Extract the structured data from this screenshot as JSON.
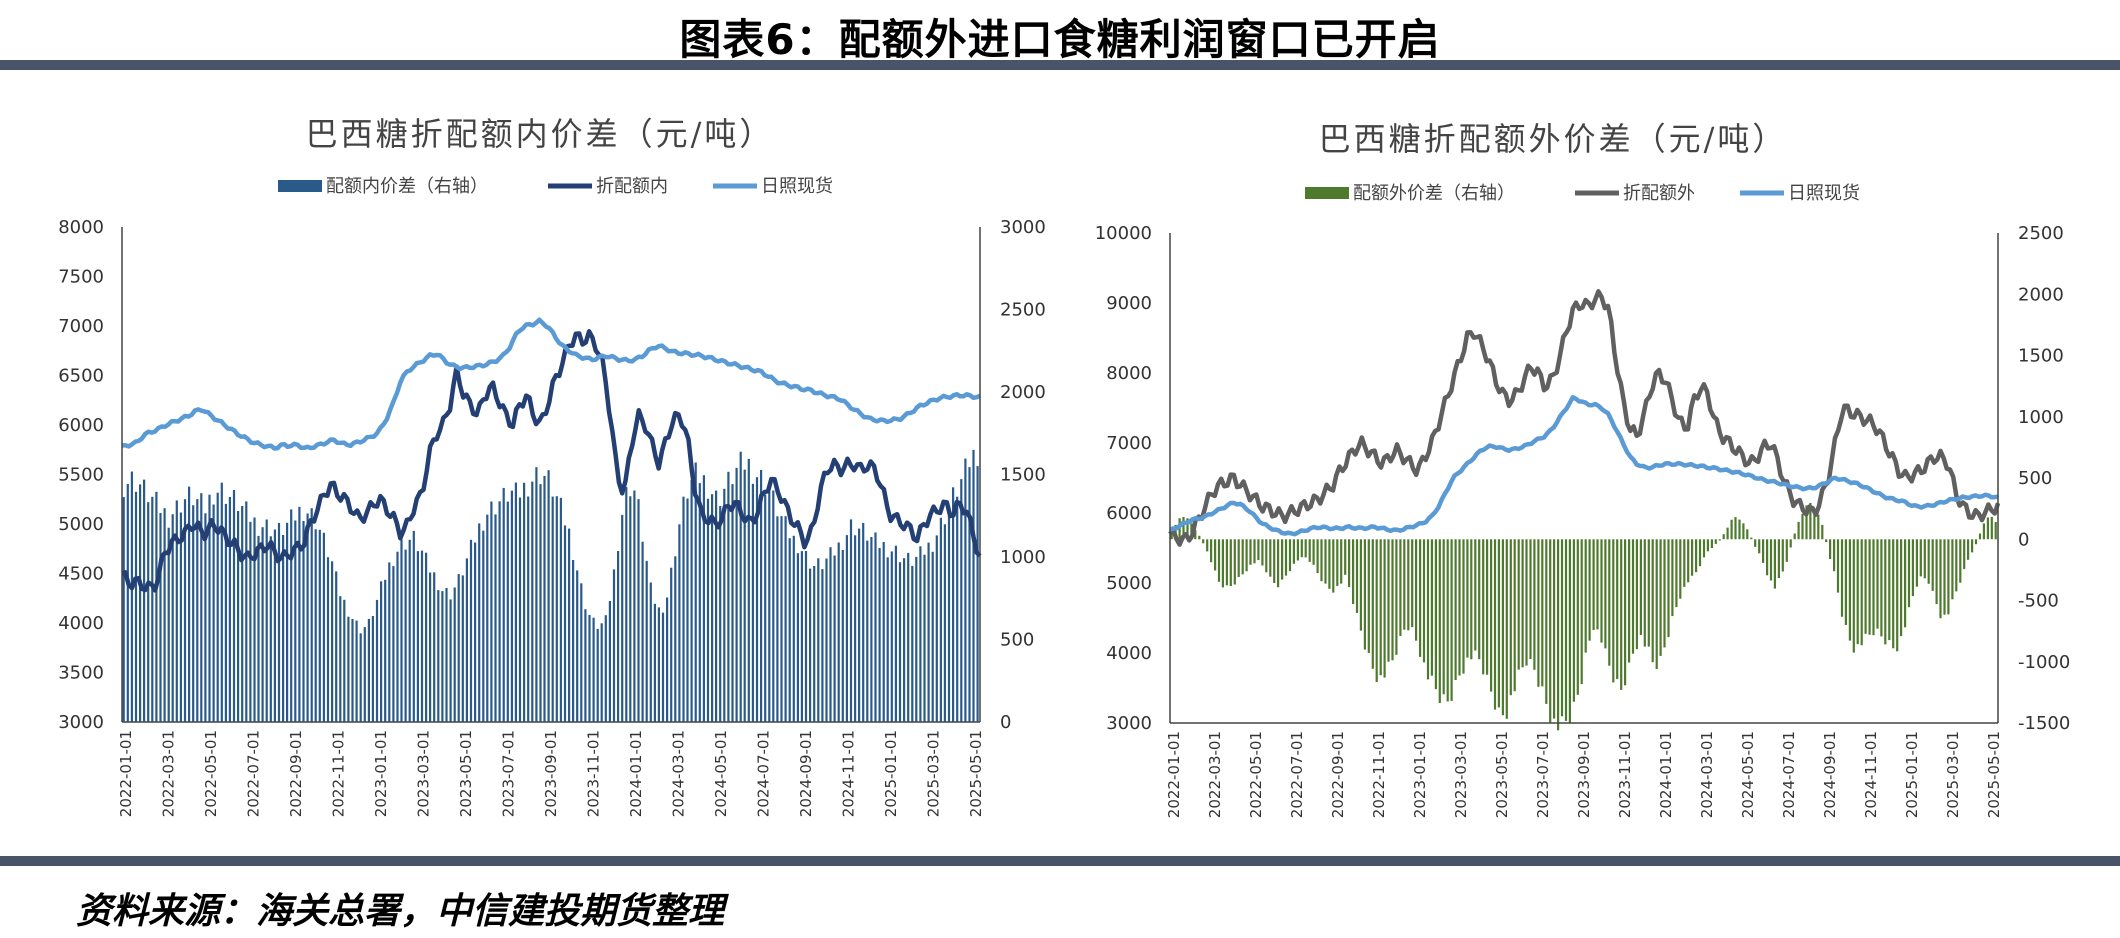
{
  "figure": {
    "title": "图表6：配额外进口食糖利润窗口已开启",
    "source": "资料来源：海关总署，中信建投期货整理"
  },
  "colors": {
    "navy": "#243f73",
    "bars_left": "#2a5a8a",
    "light_blue": "#5b9bd5",
    "green": "#4e7a2e",
    "gray": "#606060",
    "rule": "#4a5469"
  },
  "chart_data": [
    {
      "type": "bar+line",
      "title": "巴西糖折配额内价差（元/吨）",
      "legend": [
        "配额内价差（右轴）",
        "折配额内",
        "日照现货"
      ],
      "legend_position": "top",
      "y_left": {
        "min": 3000,
        "max": 8000,
        "ticks": [
          "8000",
          "7500",
          "7000",
          "6500",
          "6000",
          "5500",
          "5000",
          "4500",
          "4000",
          "3500",
          "3000"
        ]
      },
      "y_right": {
        "min": 0,
        "max": 3000,
        "ticks": [
          "3000",
          "2500",
          "2000",
          "1500",
          "1000",
          "500",
          "0"
        ]
      },
      "x_ticks": [
        "2022-01-01",
        "2022-03-01",
        "2022-05-01",
        "2022-07-01",
        "2022-09-01",
        "2022-11-01",
        "2023-01-01",
        "2023-03-01",
        "2023-05-01",
        "2023-07-01",
        "2023-09-01",
        "2023-11-01",
        "2024-01-01",
        "2024-03-01",
        "2024-05-01",
        "2024-07-01",
        "2024-09-01",
        "2024-11-01",
        "2025-01-01",
        "2025-03-01",
        "2025-05-01"
      ],
      "series": [
        {
          "name": "配额内价差（右轴）",
          "kind": "bar",
          "axis": "right",
          "values": [
            1450,
            1480,
            1460,
            1400,
            1350,
            1300,
            1250,
            1300,
            1350,
            1380,
            1340,
            1300,
            1400,
            1420,
            1380,
            1350,
            1300,
            1250,
            1200,
            1200,
            1180,
            1160,
            1200,
            1250,
            1300,
            1280,
            1220,
            1100,
            980,
            800,
            700,
            620,
            560,
            600,
            720,
            860,
            980,
            1060,
            1100,
            1120,
            1050,
            950,
            880,
            800,
            780,
            850,
            960,
            1080,
            1200,
            1280,
            1320,
            1360,
            1400,
            1380,
            1430,
            1480,
            1520,
            1490,
            1400,
            1280,
            1150,
            950,
            740,
            620,
            580,
            620,
            900,
            1250,
            1450,
            1400,
            1100,
            800,
            680,
            720,
            980,
            1250,
            1420,
            1500,
            1480,
            1420,
            1350,
            1430,
            1500,
            1560,
            1580,
            1520,
            1480,
            1400,
            1300,
            1200,
            1120,
            1080,
            1000,
            950,
            960,
            1000,
            1050,
            1120,
            1200,
            1180,
            1150,
            1100,
            1080,
            1060,
            1040,
            1000,
            980,
            1000,
            1050,
            1100,
            1200,
            1300,
            1400,
            1480,
            1600,
            1650
          ]
        },
        {
          "name": "折配额内",
          "kind": "line",
          "axis": "left",
          "values": [
            4500,
            4400,
            4420,
            4380,
            4350,
            4400,
            4700,
            4800,
            4850,
            4900,
            5000,
            4950,
            4900,
            5000,
            4950,
            4850,
            4800,
            4700,
            4650,
            4700,
            4750,
            4800,
            4700,
            4650,
            4700,
            4750,
            4800,
            5000,
            5150,
            5300,
            5400,
            5300,
            5250,
            5150,
            5050,
            5100,
            5200,
            5250,
            5150,
            5050,
            4900,
            5000,
            5200,
            5300,
            5700,
            5900,
            6000,
            6200,
            6550,
            6300,
            6200,
            6100,
            6300,
            6400,
            6250,
            6100,
            6000,
            6200,
            6300,
            6100,
            6000,
            6200,
            6450,
            6600,
            6800,
            6900,
            6850,
            6900,
            6800,
            6600,
            6100,
            5500,
            5300,
            5800,
            6100,
            6000,
            5800,
            5600,
            5850,
            6050,
            6100,
            5900,
            5400,
            5100,
            5050,
            5000,
            5050,
            5200,
            5200,
            5100,
            5000,
            5100,
            5300,
            5450,
            5350,
            5200,
            5050,
            4950,
            4800,
            4950,
            5300,
            5550,
            5600,
            5550,
            5600,
            5600,
            5550,
            5600,
            5550,
            5350,
            5100,
            5050,
            5000,
            4950,
            4850,
            5000,
            5100,
            5150,
            5200,
            5100,
            5200,
            5150,
            4900,
            4650
          ]
        },
        {
          "name": "日照现货",
          "kind": "line",
          "axis": "left",
          "values": [
            5780,
            5800,
            5820,
            5900,
            5930,
            5960,
            6000,
            6030,
            6060,
            6090,
            6140,
            6160,
            6100,
            6050,
            6000,
            5950,
            5900,
            5860,
            5820,
            5800,
            5780,
            5770,
            5800,
            5790,
            5800,
            5760,
            5780,
            5800,
            5830,
            5850,
            5810,
            5800,
            5820,
            5850,
            5880,
            5930,
            6050,
            6220,
            6450,
            6550,
            6600,
            6650,
            6700,
            6720,
            6650,
            6600,
            6580,
            6580,
            6590,
            6600,
            6620,
            6650,
            6700,
            6800,
            6950,
            7000,
            7020,
            7050,
            7000,
            6900,
            6800,
            6750,
            6700,
            6680,
            6660,
            6680,
            6700,
            6680,
            6660,
            6650,
            6660,
            6700,
            6760,
            6800,
            6780,
            6740,
            6730,
            6720,
            6710,
            6700,
            6680,
            6660,
            6640,
            6620,
            6600,
            6580,
            6560,
            6540,
            6500,
            6450,
            6420,
            6400,
            6380,
            6360,
            6350,
            6320,
            6300,
            6280,
            6260,
            6200,
            6150,
            6100,
            6060,
            6050,
            6040,
            6050,
            6060,
            6100,
            6150,
            6200,
            6230,
            6260,
            6280,
            6290,
            6300,
            6300,
            6290,
            6280
          ]
        }
      ]
    },
    {
      "type": "bar+line",
      "title": "巴西糖折配额外价差（元/吨）",
      "legend": [
        "配额外价差（右轴）",
        "折配额外",
        "日照现货"
      ],
      "legend_position": "top",
      "y_left": {
        "min": 3000,
        "max": 10000,
        "ticks": [
          "10000",
          "9000",
          "8000",
          "7000",
          "6000",
          "5000",
          "4000",
          "3000"
        ]
      },
      "y_right": {
        "min": -1500,
        "max": 2500,
        "ticks": [
          "2500",
          "2000",
          "1500",
          "1000",
          "500",
          "0",
          "-500",
          "-1000",
          "-1500"
        ]
      },
      "x_ticks": [
        "2022-01-01",
        "2022-03-01",
        "2022-05-01",
        "2022-07-01",
        "2022-09-01",
        "2022-11-01",
        "2023-01-01",
        "2023-03-01",
        "2023-05-01",
        "2023-07-01",
        "2023-09-01",
        "2023-11-01",
        "2024-01-01",
        "2024-03-01",
        "2024-05-01",
        "2024-07-01",
        "2024-09-01",
        "2024-11-01",
        "2025-01-01",
        "2025-03-01",
        "2025-05-01"
      ],
      "series": [
        {
          "name": "配额外价差（右轴）",
          "kind": "bar",
          "axis": "right",
          "values": [
            60,
            160,
            200,
            120,
            40,
            -60,
            -200,
            -350,
            -400,
            -380,
            -320,
            -260,
            -200,
            -180,
            -250,
            -350,
            -380,
            -300,
            -220,
            -160,
            -150,
            -200,
            -300,
            -380,
            -420,
            -380,
            -300,
            -500,
            -700,
            -900,
            -1050,
            -1150,
            -1100,
            -1000,
            -850,
            -700,
            -750,
            -900,
            -1100,
            -1200,
            -1300,
            -1350,
            -1250,
            -1100,
            -1000,
            -950,
            -1000,
            -1150,
            -1300,
            -1450,
            -1400,
            -1250,
            -1100,
            -1000,
            -1050,
            -1200,
            -1350,
            -1500,
            -1550,
            -1500,
            -1400,
            -1200,
            -900,
            -700,
            -800,
            -1000,
            -1150,
            -1250,
            -1100,
            -900,
            -800,
            -900,
            -1050,
            -1000,
            -800,
            -600,
            -450,
            -350,
            -300,
            -200,
            -100,
            -50,
            0,
            100,
            200,
            150,
            80,
            -50,
            -150,
            -300,
            -400,
            -300,
            -150,
            50,
            200,
            300,
            250,
            150,
            -100,
            -300,
            -600,
            -800,
            -900,
            -850,
            -800,
            -750,
            -800,
            -850,
            -900,
            -800,
            -600,
            -400,
            -300,
            -350,
            -500,
            -650,
            -600,
            -450,
            -300,
            -150,
            -50,
            100,
            200,
            150
          ]
        },
        {
          "name": "折配额外",
          "kind": "line",
          "axis": "left",
          "values": [
            5700,
            5650,
            5600,
            5700,
            5900,
            6100,
            6300,
            6400,
            6450,
            6500,
            6400,
            6300,
            6200,
            6100,
            6050,
            6000,
            5950,
            6000,
            6050,
            6100,
            6150,
            6200,
            6300,
            6400,
            6600,
            6750,
            6900,
            7000,
            6900,
            6800,
            6700,
            6800,
            6900,
            6800,
            6700,
            6600,
            6800,
            7000,
            7300,
            7600,
            7900,
            8200,
            8500,
            8600,
            8400,
            8200,
            7900,
            7700,
            7600,
            7700,
            7900,
            8100,
            8000,
            7800,
            7900,
            8200,
            8600,
            8900,
            9000,
            8950,
            9050,
            9100,
            8900,
            8200,
            7600,
            7200,
            7100,
            7400,
            7800,
            8000,
            7900,
            7600,
            7300,
            7200,
            7600,
            7800,
            7700,
            7300,
            7100,
            7000,
            6900,
            6800,
            6700,
            6800,
            6950,
            7000,
            6700,
            6400,
            6200,
            6100,
            6050,
            6000,
            6200,
            6500,
            7000,
            7500,
            7450,
            7400,
            7350,
            7300,
            7200,
            7000,
            6800,
            6600,
            6500,
            6550,
            6600,
            6700,
            6800,
            6800,
            6700,
            6300,
            6100,
            6000,
            5950,
            6000,
            6050,
            6100
          ]
        },
        {
          "name": "日照现货",
          "kind": "line",
          "axis": "left",
          "values": [
            5750,
            5800,
            5850,
            5900,
            5920,
            5950,
            6000,
            6050,
            6100,
            6150,
            6120,
            6050,
            5950,
            5850,
            5800,
            5750,
            5720,
            5700,
            5720,
            5750,
            5780,
            5800,
            5790,
            5780,
            5780,
            5800,
            5790,
            5780,
            5790,
            5800,
            5780,
            5760,
            5750,
            5770,
            5800,
            5830,
            5870,
            5950,
            6100,
            6300,
            6500,
            6600,
            6700,
            6800,
            6900,
            6950,
            6950,
            6920,
            6900,
            6920,
            6950,
            7000,
            7050,
            7100,
            7200,
            7350,
            7500,
            7650,
            7600,
            7550,
            7550,
            7500,
            7400,
            7200,
            7000,
            6800,
            6700,
            6650,
            6650,
            6680,
            6700,
            6700,
            6700,
            6690,
            6680,
            6670,
            6650,
            6640,
            6620,
            6600,
            6580,
            6560,
            6530,
            6500,
            6470,
            6450,
            6430,
            6400,
            6380,
            6360,
            6350,
            6360,
            6400,
            6450,
            6500,
            6480,
            6450,
            6420,
            6380,
            6330,
            6280,
            6230,
            6200,
            6180,
            6150,
            6100,
            6090,
            6100,
            6120,
            6150,
            6180,
            6200,
            6220,
            6230,
            6240,
            6250,
            6240,
            6220
          ]
        }
      ]
    }
  ]
}
